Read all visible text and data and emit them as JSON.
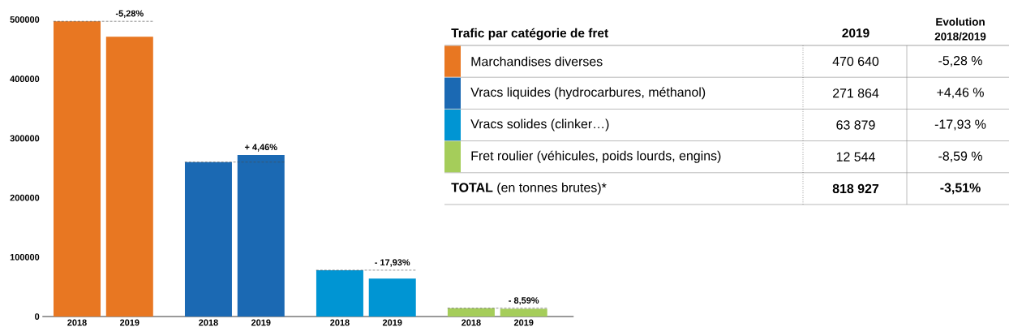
{
  "chart_data": [
    {
      "type": "bar",
      "categories": [
        "2018",
        "2019",
        "2018",
        "2019",
        "2018",
        "2019",
        "2018",
        "2019"
      ],
      "values": [
        497000,
        471000,
        260000,
        272000,
        78000,
        64000,
        14000,
        13000
      ],
      "colors": [
        "#e87722",
        "#e87722",
        "#1b69b3",
        "#1b69b3",
        "#0095d3",
        "#0095d3",
        "#a5cd5a",
        "#a5cd5a"
      ],
      "ylim": [
        0,
        500000
      ],
      "yticks": [
        0,
        100000,
        200000,
        300000,
        400000,
        500000
      ],
      "annotations": [
        "-5,28%",
        "+ 4,46%",
        "- 17,93%",
        "- 8,59%"
      ],
      "ref_lines": [
        {
          "axis": "y",
          "value": 497000,
          "line_style": "dashed"
        },
        {
          "axis": "y",
          "value": 260000,
          "line_style": "dashed"
        },
        {
          "axis": "y",
          "value": 78000,
          "line_style": "dashed"
        },
        {
          "axis": "y",
          "value": 14000,
          "line_style": "dashed"
        }
      ]
    },
    {
      "type": "other",
      "title": "Trafic par catégorie de fret",
      "colors": [
        "#e87722",
        "#1b69b3",
        "#0095d3",
        "#a5cd5a"
      ],
      "annotations": [
        "2019",
        "Evolution 2018/2019",
        "Marchandises diverses",
        "470 640",
        "-5,28 %",
        "Vracs liquides (hydrocarbures, méthanol)",
        "271 864",
        "+4,46 %",
        "Vracs solides (clinker…)",
        "63 879",
        "-17,93 %",
        "Fret roulier (véhicules, poids lourds, engins)",
        "12 544",
        "-8,59 %",
        "**TOTAL** (en tonnes brutes)*",
        "818 927",
        "-3,51%"
      ]
    }
  ]
}
